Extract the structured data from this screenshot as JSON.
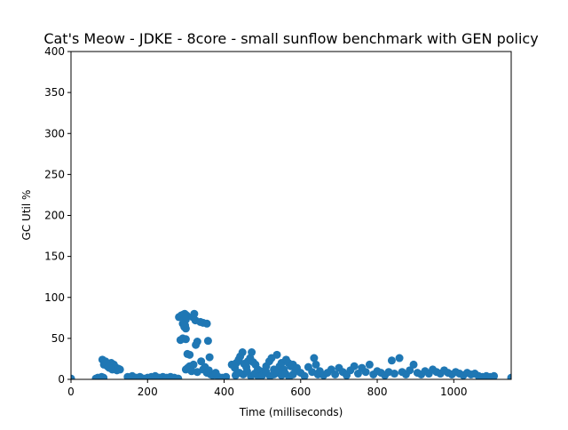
{
  "chart_data": {
    "type": "scatter",
    "title": "Cat's Meow - JDKE - 8core -  small sunflow benchmark with GEN policy",
    "xlabel": "Time (milliseconds)",
    "ylabel": "GC Util %",
    "xlim": [
      0,
      1150
    ],
    "ylim": [
      0,
      400
    ],
    "x_ticks": [
      0,
      200,
      400,
      600,
      800,
      1000
    ],
    "y_ticks": [
      0,
      50,
      100,
      150,
      200,
      250,
      300,
      350,
      400
    ],
    "grid": false,
    "marker_color": "#1f77b4",
    "points": [
      [
        0,
        1
      ],
      [
        65,
        1
      ],
      [
        70,
        2
      ],
      [
        75,
        1
      ],
      [
        80,
        3
      ],
      [
        85,
        2
      ],
      [
        82,
        24
      ],
      [
        86,
        18
      ],
      [
        90,
        22
      ],
      [
        95,
        16
      ],
      [
        100,
        14
      ],
      [
        105,
        20
      ],
      [
        108,
        12
      ],
      [
        112,
        18
      ],
      [
        116,
        15
      ],
      [
        120,
        11
      ],
      [
        124,
        13
      ],
      [
        128,
        12
      ],
      [
        92,
        20
      ],
      [
        98,
        15
      ],
      [
        148,
        3
      ],
      [
        155,
        2
      ],
      [
        160,
        4
      ],
      [
        170,
        2
      ],
      [
        180,
        3
      ],
      [
        190,
        1
      ],
      [
        200,
        2
      ],
      [
        210,
        3
      ],
      [
        220,
        4
      ],
      [
        230,
        2
      ],
      [
        240,
        3
      ],
      [
        250,
        2
      ],
      [
        260,
        3
      ],
      [
        270,
        2
      ],
      [
        280,
        1
      ],
      [
        282,
        76
      ],
      [
        288,
        78
      ],
      [
        293,
        79
      ],
      [
        297,
        80
      ],
      [
        302,
        78
      ],
      [
        300,
        73
      ],
      [
        292,
        68
      ],
      [
        296,
        64
      ],
      [
        300,
        62
      ],
      [
        298,
        66
      ],
      [
        286,
        48
      ],
      [
        292,
        50
      ],
      [
        300,
        49
      ],
      [
        304,
        31
      ],
      [
        310,
        30
      ],
      [
        318,
        76
      ],
      [
        322,
        80
      ],
      [
        325,
        72
      ],
      [
        330,
        46
      ],
      [
        326,
        42
      ],
      [
        338,
        70
      ],
      [
        345,
        69
      ],
      [
        355,
        68
      ],
      [
        358,
        47
      ],
      [
        362,
        27
      ],
      [
        300,
        12
      ],
      [
        305,
        14
      ],
      [
        310,
        16
      ],
      [
        315,
        10
      ],
      [
        320,
        18
      ],
      [
        330,
        9
      ],
      [
        340,
        22
      ],
      [
        345,
        12
      ],
      [
        350,
        15
      ],
      [
        355,
        8
      ],
      [
        360,
        11
      ],
      [
        365,
        6
      ],
      [
        370,
        5
      ],
      [
        378,
        8
      ],
      [
        385,
        3
      ],
      [
        395,
        2
      ],
      [
        405,
        3
      ],
      [
        420,
        18
      ],
      [
        428,
        14
      ],
      [
        432,
        20
      ],
      [
        438,
        24
      ],
      [
        442,
        28
      ],
      [
        448,
        33
      ],
      [
        452,
        19
      ],
      [
        458,
        15
      ],
      [
        462,
        22
      ],
      [
        468,
        26
      ],
      [
        472,
        33
      ],
      [
        476,
        21
      ],
      [
        482,
        18
      ],
      [
        488,
        12
      ],
      [
        495,
        10
      ],
      [
        502,
        8
      ],
      [
        510,
        16
      ],
      [
        518,
        22
      ],
      [
        524,
        26
      ],
      [
        530,
        12
      ],
      [
        538,
        30
      ],
      [
        545,
        16
      ],
      [
        550,
        20
      ],
      [
        556,
        12
      ],
      [
        562,
        24
      ],
      [
        568,
        20
      ],
      [
        574,
        16
      ],
      [
        580,
        18
      ],
      [
        586,
        10
      ],
      [
        590,
        14
      ],
      [
        430,
        5
      ],
      [
        440,
        8
      ],
      [
        450,
        6
      ],
      [
        460,
        10
      ],
      [
        470,
        4
      ],
      [
        480,
        7
      ],
      [
        490,
        3
      ],
      [
        500,
        5
      ],
      [
        510,
        9
      ],
      [
        520,
        4
      ],
      [
        530,
        6
      ],
      [
        540,
        8
      ],
      [
        550,
        5
      ],
      [
        560,
        7
      ],
      [
        570,
        3
      ],
      [
        580,
        6
      ],
      [
        600,
        8
      ],
      [
        610,
        4
      ],
      [
        620,
        15
      ],
      [
        630,
        9
      ],
      [
        635,
        26
      ],
      [
        640,
        18
      ],
      [
        645,
        6
      ],
      [
        650,
        10
      ],
      [
        660,
        5
      ],
      [
        670,
        8
      ],
      [
        680,
        12
      ],
      [
        690,
        6
      ],
      [
        700,
        14
      ],
      [
        710,
        9
      ],
      [
        720,
        5
      ],
      [
        730,
        11
      ],
      [
        740,
        16
      ],
      [
        750,
        7
      ],
      [
        760,
        14
      ],
      [
        770,
        9
      ],
      [
        780,
        18
      ],
      [
        790,
        6
      ],
      [
        800,
        10
      ],
      [
        810,
        8
      ],
      [
        820,
        5
      ],
      [
        830,
        9
      ],
      [
        838,
        23
      ],
      [
        845,
        7
      ],
      [
        858,
        26
      ],
      [
        865,
        9
      ],
      [
        875,
        6
      ],
      [
        885,
        11
      ],
      [
        895,
        18
      ],
      [
        905,
        8
      ],
      [
        915,
        6
      ],
      [
        925,
        10
      ],
      [
        935,
        7
      ],
      [
        945,
        12
      ],
      [
        955,
        9
      ],
      [
        965,
        7
      ],
      [
        975,
        11
      ],
      [
        985,
        8
      ],
      [
        995,
        6
      ],
      [
        1005,
        9
      ],
      [
        1015,
        7
      ],
      [
        1025,
        5
      ],
      [
        1035,
        8
      ],
      [
        1045,
        6
      ],
      [
        1055,
        7
      ],
      [
        1065,
        4
      ],
      [
        1075,
        3
      ],
      [
        1085,
        4
      ],
      [
        1095,
        3
      ],
      [
        1105,
        4
      ],
      [
        1150,
        2
      ]
    ]
  }
}
